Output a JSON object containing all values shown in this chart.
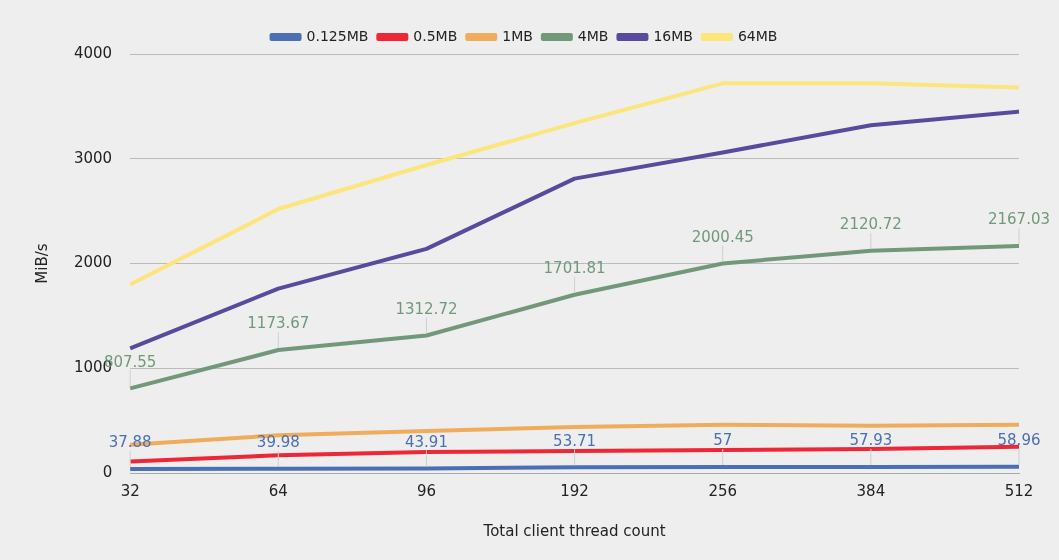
{
  "chart_data": {
    "type": "line",
    "xlabel": "Total client thread count",
    "ylabel": "MiB/s",
    "categories": [
      "32",
      "64",
      "96",
      "192",
      "256",
      "384",
      "512"
    ],
    "series": [
      {
        "name": "0.125MB",
        "color": "#4a6fb5",
        "values": [
          37.88,
          39.98,
          43.91,
          53.71,
          57,
          57.93,
          58.96
        ],
        "value_labels": [
          "37.88",
          "39.98",
          "43.91",
          "53.71",
          "57",
          "57.93",
          "58.96"
        ]
      },
      {
        "name": "0.5MB",
        "color": "#ee2737",
        "values": [
          110,
          170,
          200,
          210,
          220,
          230,
          250
        ]
      },
      {
        "name": "1MB",
        "color": "#f0ac5c",
        "values": [
          270,
          360,
          400,
          440,
          460,
          450,
          460
        ]
      },
      {
        "name": "4MB",
        "color": "#72987a",
        "values": [
          807.55,
          1173.67,
          1312.72,
          1701.81,
          2000.45,
          2120.72,
          2167.03
        ],
        "value_labels": [
          "807.55",
          "1173.67",
          "1312.72",
          "1701.81",
          "2000.45",
          "2120.72",
          "2167.03"
        ]
      },
      {
        "name": "16MB",
        "color": "#5a4a9e",
        "values": [
          1190,
          1760,
          2140,
          2810,
          3060,
          3320,
          3450
        ]
      },
      {
        "name": "64MB",
        "color": "#fbe57c",
        "values": [
          1800,
          2520,
          2940,
          3340,
          3720,
          3720,
          3680
        ]
      }
    ],
    "ylim": [
      0,
      4000
    ],
    "yticks": [
      0,
      1000,
      2000,
      3000,
      4000
    ],
    "grid": "y",
    "legend": "top",
    "marker": "none",
    "line_style": "solid"
  }
}
